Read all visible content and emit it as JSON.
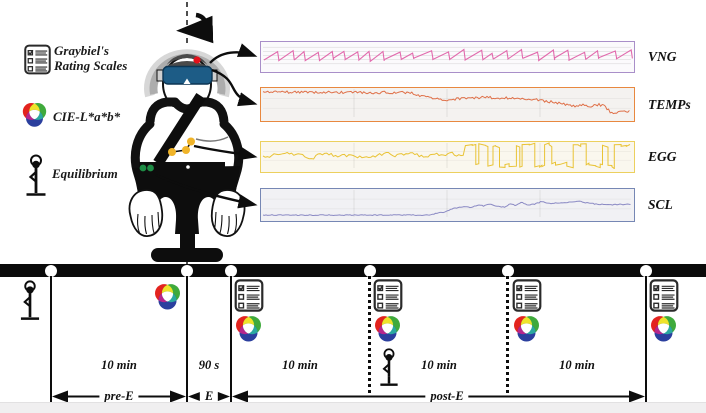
{
  "figure": {
    "description": "Participant seated in a rotating chair wearing a VR headset with physiological sensors",
    "rotation_axis": "yaw rotation (dashed vertical axis with curved arrow)",
    "sensor_markers": [
      {
        "name": "forehead-electrode",
        "color": "#e01820"
      },
      {
        "name": "abdomen-egg-electrodes",
        "color": "#f0b429"
      },
      {
        "name": "wrist-scl-electrodes",
        "color": "#1e8c45"
      }
    ]
  },
  "legend": {
    "items": [
      {
        "icon": "rating-scales-icon",
        "line1": "Graybiel's",
        "line2": "Rating Scales"
      },
      {
        "icon": "cie-lab-icon",
        "label": "CIE-L*a*b*"
      },
      {
        "icon": "equilibrium-icon",
        "label": "Equilibrium"
      }
    ]
  },
  "signals": [
    {
      "label": "VNG",
      "border_color": "#a98fc9",
      "trace_color": "#e26aad",
      "background": "#fbfafc",
      "waveform": "sawtooth",
      "grid": "horizontal"
    },
    {
      "label": "TEMPs",
      "border_color": "#e8883f",
      "trace_color": "#df7048",
      "background": "#f4f2f0",
      "waveform": "declining-noise",
      "grid": "vertical"
    },
    {
      "label": "EGG",
      "border_color": "#ecd05e",
      "trace_color": "#e9c335",
      "background": "#faf7ee",
      "waveform": "noise-then-oscillation",
      "grid": "vertical"
    },
    {
      "label": "SCL",
      "border_color": "#7687b4",
      "trace_color": "#8b8ac4",
      "background": "#f1f1f4",
      "waveform": "flat-then-rise",
      "grid": "vertical"
    }
  ],
  "timeline": {
    "segments": [
      {
        "duration": "10 min"
      },
      {
        "duration": "90 s"
      },
      {
        "duration": "10 min"
      },
      {
        "duration": "10 min"
      },
      {
        "duration": "10 min"
      }
    ],
    "phases": [
      {
        "label": "pre-E"
      },
      {
        "label": "E"
      },
      {
        "label": "post-E"
      }
    ],
    "events": [
      {
        "icons": [
          "equilibrium-icon"
        ]
      },
      {
        "icons": [
          "cie-lab-icon"
        ]
      },
      {
        "icons": [
          "rating-scales-icon",
          "cie-lab-icon"
        ]
      },
      {
        "icons": [
          "rating-scales-icon",
          "cie-lab-icon",
          "equilibrium-icon"
        ]
      },
      {
        "icons": [
          "rating-scales-icon",
          "cie-lab-icon"
        ]
      },
      {
        "icons": [
          "rating-scales-icon",
          "cie-lab-icon"
        ]
      }
    ]
  }
}
